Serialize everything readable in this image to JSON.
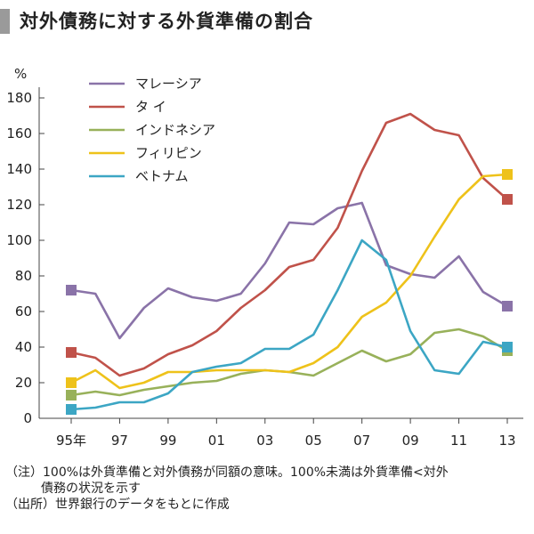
{
  "title": "対外債務に対する外貨準備の割合",
  "chart_data": {
    "type": "line",
    "title": "対外債務に対する外貨準備の割合",
    "ylabel": "%",
    "ylim": [
      0,
      180
    ],
    "yticks": [
      0,
      20,
      40,
      60,
      80,
      100,
      120,
      140,
      160,
      180
    ],
    "x": [
      1995,
      1996,
      1997,
      1998,
      1999,
      2000,
      2001,
      2002,
      2003,
      2004,
      2005,
      2006,
      2007,
      2008,
      2009,
      2010,
      2011,
      2012,
      2013
    ],
    "xtick_values": [
      1995,
      1997,
      1999,
      2001,
      2003,
      2005,
      2007,
      2009,
      2011,
      2013
    ],
    "xtick_labels": [
      "95年",
      "97",
      "99",
      "01",
      "03",
      "05",
      "07",
      "09",
      "11",
      "13"
    ],
    "series": [
      {
        "name": "マレーシア",
        "color": "#8a73a8",
        "values": [
          72,
          70,
          45,
          62,
          73,
          68,
          66,
          70,
          87,
          110,
          109,
          118,
          121,
          86,
          81,
          79,
          91,
          71,
          63
        ]
      },
      {
        "name": "タ イ",
        "color": "#c0524a",
        "values": [
          37,
          34,
          24,
          28,
          36,
          41,
          49,
          62,
          72,
          85,
          89,
          107,
          139,
          166,
          171,
          162,
          159,
          135,
          123
        ]
      },
      {
        "name": "インドネシア",
        "color": "#98b15a",
        "values": [
          13,
          15,
          13,
          16,
          18,
          20,
          21,
          25,
          27,
          26,
          24,
          31,
          38,
          32,
          36,
          48,
          50,
          46,
          38
        ]
      },
      {
        "name": "フィリピン",
        "color": "#eec21a",
        "values": [
          20,
          27,
          17,
          20,
          26,
          26,
          27,
          27,
          27,
          26,
          31,
          40,
          57,
          65,
          80,
          102,
          123,
          136,
          137
        ]
      },
      {
        "name": "ベトナム",
        "color": "#3ca6c4",
        "values": [
          5,
          6,
          9,
          9,
          14,
          26,
          29,
          31,
          39,
          39,
          47,
          72,
          100,
          89,
          49,
          27,
          25,
          43,
          40
        ]
      }
    ]
  },
  "notes": {
    "line1": "（注）100%は外貨準備と対外債務が同額の意味。100%未満は外貨準備<対外",
    "line2": "債務の状況を示す",
    "line3": "（出所）世界銀行のデータをもとに作成"
  }
}
